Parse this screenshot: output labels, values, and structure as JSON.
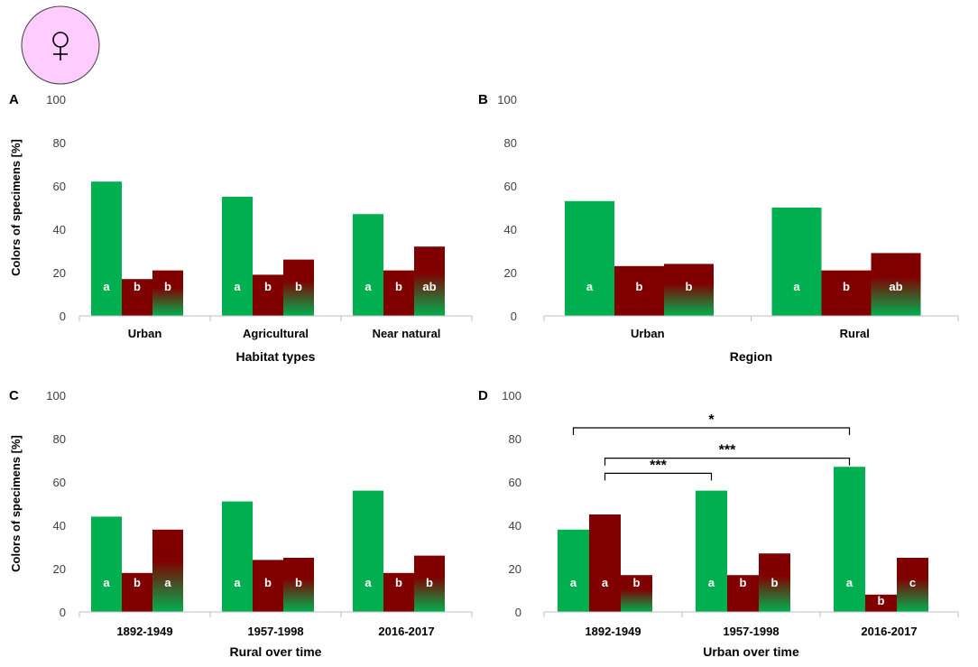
{
  "symbol": {
    "glyph": "♀",
    "name": "female-symbol",
    "fill": "#ffccff"
  },
  "colors": {
    "green": "#00b050",
    "red": "#800000",
    "axis": "#bfbfbf",
    "text": "#404040"
  },
  "chart_data": [
    {
      "id": "A",
      "type": "bar",
      "letter": "A",
      "xlabel": "Habitat types",
      "ylabel": "Colors of specimens [%]",
      "ylim": [
        0,
        100
      ],
      "yticks": [
        0,
        20,
        40,
        60,
        80,
        100
      ],
      "categories": [
        "Urban",
        "Agricultural",
        "Near natural"
      ],
      "series": [
        {
          "name": "green",
          "style": "green",
          "values": [
            62,
            55,
            47
          ],
          "labels": [
            "a",
            "a",
            "a"
          ]
        },
        {
          "name": "red",
          "style": "red",
          "values": [
            17,
            19,
            21
          ],
          "labels": [
            "b",
            "b",
            "b"
          ]
        },
        {
          "name": "red-green",
          "style": "gradient",
          "values": [
            21,
            26,
            32
          ],
          "labels": [
            "b",
            "b",
            "ab"
          ]
        }
      ],
      "significance": []
    },
    {
      "id": "B",
      "type": "bar",
      "letter": "B",
      "xlabel": "Region",
      "ylabel": "",
      "ylim": [
        0,
        100
      ],
      "yticks": [
        0,
        20,
        40,
        60,
        80,
        100
      ],
      "categories": [
        "Urban",
        "Rural"
      ],
      "series": [
        {
          "name": "green",
          "style": "green",
          "values": [
            53,
            50
          ],
          "labels": [
            "a",
            "a"
          ]
        },
        {
          "name": "red",
          "style": "red",
          "values": [
            23,
            21
          ],
          "labels": [
            "b",
            "b"
          ]
        },
        {
          "name": "red-green",
          "style": "gradient",
          "values": [
            24,
            29
          ],
          "labels": [
            "b",
            "ab"
          ]
        }
      ],
      "significance": []
    },
    {
      "id": "C",
      "type": "bar",
      "letter": "C",
      "xlabel": "Rural over time",
      "ylabel": "Colors of specimens [%]",
      "ylim": [
        0,
        100
      ],
      "yticks": [
        0,
        20,
        40,
        60,
        80,
        100
      ],
      "categories": [
        "1892-1949",
        "1957-1998",
        "2016-2017"
      ],
      "series": [
        {
          "name": "green",
          "style": "green",
          "values": [
            44,
            51,
            56
          ],
          "labels": [
            "a",
            "a",
            "a"
          ]
        },
        {
          "name": "red",
          "style": "red",
          "values": [
            18,
            24,
            18
          ],
          "labels": [
            "b",
            "b",
            "b"
          ]
        },
        {
          "name": "red-green",
          "style": "gradient",
          "values": [
            38,
            25,
            26
          ],
          "labels": [
            "a",
            "b",
            "b"
          ]
        }
      ],
      "significance": []
    },
    {
      "id": "D",
      "type": "bar",
      "letter": "D",
      "xlabel": "Urban over time",
      "ylabel": "",
      "ylim": [
        0,
        100
      ],
      "yticks": [
        0,
        20,
        40,
        60,
        80,
        100
      ],
      "categories": [
        "1892-1949",
        "1957-1998",
        "2016-2017"
      ],
      "series": [
        {
          "name": "green",
          "style": "green",
          "values": [
            38,
            56,
            67
          ],
          "labels": [
            "a",
            "a",
            "a"
          ]
        },
        {
          "name": "red",
          "style": "red",
          "values": [
            45,
            17,
            8
          ],
          "labels": [
            "a",
            "b",
            "b"
          ]
        },
        {
          "name": "red-green",
          "style": "gradient",
          "values": [
            17,
            27,
            25
          ],
          "labels": [
            "b",
            "b",
            "c"
          ]
        }
      ],
      "significance": [
        {
          "from": [
            0,
            0
          ],
          "to": [
            2,
            0
          ],
          "level": 85,
          "label": "*"
        },
        {
          "from": [
            0,
            1
          ],
          "to": [
            2,
            0
          ],
          "level": 71,
          "label": "***"
        },
        {
          "from": [
            0,
            1
          ],
          "to": [
            1,
            0
          ],
          "level": 64,
          "label": "***"
        }
      ]
    }
  ]
}
